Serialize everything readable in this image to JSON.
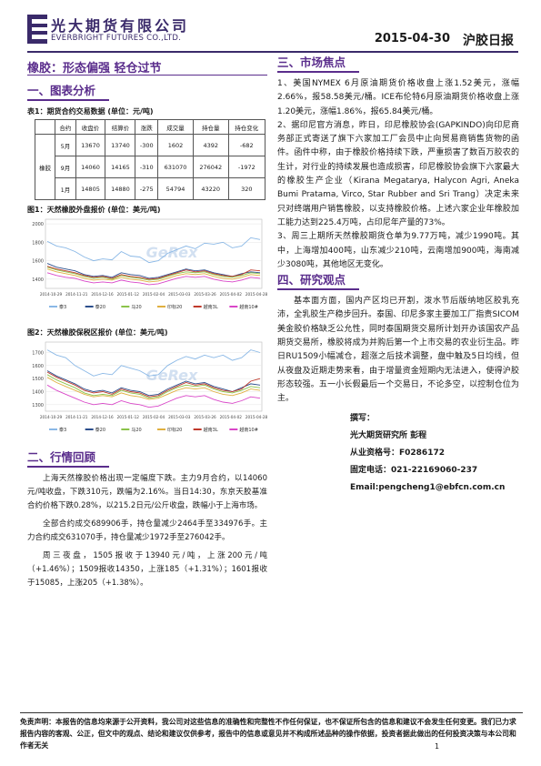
{
  "header": {
    "company_cn": "光大期货有限公司",
    "company_en": "EVERBRIGHT FUTURES CO.,LTD.",
    "date": "2015-04-30",
    "report_title": "沪胶日报"
  },
  "main_title": "橡胶：形态偏强 轻仓过节",
  "sections": {
    "charts": "一、图表分析",
    "market_review": "二、行情回顾",
    "market_focus": "三、市场焦点",
    "research_view": "四、研究观点"
  },
  "table1": {
    "caption": "表1：期货合约交易数据  (单位：元/吨)",
    "headers": [
      "合约",
      "收盘价",
      "结算价",
      "涨跌",
      "成交量",
      "持仓量",
      "持仓变化"
    ],
    "product": "橡胶",
    "rows": [
      [
        "5月",
        "13670",
        "13740",
        "-300",
        "1602",
        "4392",
        "-682"
      ],
      [
        "9月",
        "14060",
        "14165",
        "-310",
        "631070",
        "276042",
        "-1972"
      ],
      [
        "1月",
        "14805",
        "14880",
        "-275",
        "54794",
        "43220",
        "320"
      ]
    ]
  },
  "chart1": {
    "caption": "图1：天然橡胶外盘报价 (单位：美元/吨)",
    "watermark": "GeRex"
  },
  "chart2": {
    "caption": "图2：天然橡胶保税区报价 (单位：美元/吨)",
    "watermark": "GeRex"
  },
  "chart_data": [
    {
      "type": "line",
      "y_ticks": [
        "2000",
        "1800",
        "1600",
        "1400"
      ],
      "ylim": [
        1300,
        2050
      ],
      "x_ticks": [
        "2014-10-29",
        "2014-11-21",
        "2014-12-16",
        "2015-01-12",
        "2015-02-04",
        "2015-03-03",
        "2015-03-26",
        "2015-04-02",
        "2015-04-28"
      ],
      "legend_position": "bottom",
      "series": [
        {
          "name": "泰3",
          "color": "#8ab8e6",
          "values": [
            1810,
            1760,
            1740,
            1700,
            1640,
            1600,
            1620,
            1610,
            1700,
            1650,
            1640,
            1580,
            1600,
            1680,
            1720,
            1760,
            1730,
            1790,
            1780,
            1800,
            1740,
            1760,
            1850,
            1830
          ]
        },
        {
          "name": "泰20",
          "color": "#2c4f8c",
          "values": [
            1570,
            1530,
            1510,
            1490,
            1450,
            1430,
            1440,
            1420,
            1470,
            1450,
            1440,
            1410,
            1420,
            1450,
            1480,
            1510,
            1490,
            1500,
            1470,
            1450,
            1430,
            1460,
            1480,
            1470
          ]
        },
        {
          "name": "马20",
          "color": "#8bc34a",
          "values": [
            1530,
            1500,
            1480,
            1460,
            1430,
            1410,
            1420,
            1400,
            1440,
            1420,
            1410,
            1390,
            1400,
            1430,
            1460,
            1480,
            1470,
            1480,
            1450,
            1430,
            1420,
            1440,
            1470,
            1460
          ]
        },
        {
          "name": "印标20",
          "color": "#e0b040",
          "values": [
            1510,
            1480,
            1460,
            1440,
            1410,
            1390,
            1400,
            1390,
            1420,
            1400,
            1390,
            1370,
            1380,
            1410,
            1440,
            1460,
            1450,
            1460,
            1430,
            1410,
            1400,
            1420,
            1450,
            1440
          ]
        },
        {
          "name": "越南3L",
          "color": "#c0392b",
          "values": [
            1540,
            1510,
            1490,
            1470,
            1440,
            1420,
            1430,
            1410,
            1450,
            1430,
            1420,
            1400,
            1410,
            1440,
            1470,
            1500,
            1480,
            1490,
            1460,
            1440,
            1430,
            1450,
            1500,
            1490
          ]
        },
        {
          "name": "越南10#",
          "color": "#d946c8",
          "values": [
            1470,
            1440,
            1420,
            1410,
            1380,
            1360,
            1370,
            1360,
            1390,
            1370,
            1360,
            1340,
            1350,
            1380,
            1410,
            1430,
            1420,
            1430,
            1400,
            1380,
            1370,
            1390,
            1420,
            1410
          ]
        }
      ]
    },
    {
      "type": "line",
      "y_ticks": [
        "1700",
        "1600",
        "1500",
        "1400",
        "1300"
      ],
      "ylim": [
        1250,
        1780
      ],
      "x_ticks": [
        "2014-10-29",
        "2014-11-21",
        "2014-12-16",
        "2015-01-12",
        "2015-02-04",
        "2015-03-03",
        "2015-03-26",
        "2015-04-02",
        "2015-04-28"
      ],
      "legend_position": "bottom",
      "series": [
        {
          "name": "泰3",
          "color": "#8ab8e6",
          "values": [
            1720,
            1680,
            1660,
            1600,
            1560,
            1520,
            1540,
            1530,
            1600,
            1580,
            1560,
            1520,
            1530,
            1600,
            1640,
            1670,
            1650,
            1680,
            1660,
            1680,
            1640,
            1660,
            1720,
            1700
          ]
        },
        {
          "name": "泰20",
          "color": "#2c4f8c",
          "values": [
            1560,
            1520,
            1490,
            1460,
            1420,
            1400,
            1410,
            1390,
            1430,
            1410,
            1400,
            1370,
            1380,
            1420,
            1450,
            1480,
            1460,
            1470,
            1440,
            1420,
            1400,
            1430,
            1460,
            1450
          ]
        },
        {
          "name": "马20",
          "color": "#8bc34a",
          "values": [
            1530,
            1490,
            1460,
            1430,
            1390,
            1370,
            1380,
            1370,
            1410,
            1390,
            1380,
            1350,
            1360,
            1400,
            1430,
            1450,
            1440,
            1450,
            1420,
            1400,
            1390,
            1410,
            1440,
            1430
          ]
        },
        {
          "name": "印标20",
          "color": "#e0b040",
          "values": [
            1510,
            1470,
            1440,
            1410,
            1380,
            1360,
            1370,
            1360,
            1390,
            1370,
            1360,
            1340,
            1350,
            1380,
            1410,
            1430,
            1420,
            1430,
            1400,
            1380,
            1370,
            1390,
            1420,
            1410
          ]
        },
        {
          "name": "越南3L",
          "color": "#c0392b",
          "values": [
            1550,
            1510,
            1480,
            1450,
            1410,
            1390,
            1400,
            1380,
            1420,
            1400,
            1390,
            1360,
            1370,
            1410,
            1440,
            1470,
            1450,
            1460,
            1430,
            1410,
            1400,
            1420,
            1480,
            1500
          ]
        },
        {
          "name": "越南10#",
          "color": "#d946c8",
          "values": [
            1450,
            1410,
            1380,
            1350,
            1320,
            1300,
            1310,
            1300,
            1330,
            1310,
            1300,
            1280,
            1290,
            1320,
            1350,
            1370,
            1360,
            1370,
            1340,
            1320,
            1310,
            1330,
            1360,
            1350
          ]
        }
      ]
    }
  ],
  "market_review": [
    "上海天然橡胶价格出现一定幅度下跌。主力9月合约，以14060元/吨收盘，下跌310元，跌幅为2.16%。当日14:30，东京天胶基准合约价格下跌0.28%，以215.2日元/公斤收盘，跌幅小于上海市场。",
    "全部合约成交689906手，持仓量减少2464手至334976手。主力合约成交631070手，持仓量减少1972手至276042手。",
    "周三夜盘，1505报收于13940元/吨，上涨200元/吨（+1.46%）；1509报收14350，上涨185（+1.31%）；1601报收于15085，上涨205（+1.38%）。"
  ],
  "market_focus": [
    "1、美国NYMEX 6月原油期货价格收盘上涨1.52美元，涨幅2.66%，报58.58美元/桶。ICE布伦特6月原油期货价格收盘上涨1.20美元，涨幅1.86%，报65.84美元/桶。",
    "2、据印尼官方消息，昨日，印尼橡胶协会(GAPKINDO)向印尼商务部正式寄送了旗下六家加工厂会员中止向贸易商销售货物的函件。函件中称，由于橡胶价格持续下跌，严重损害了数百万胶农的生计，对行业的持续发展也造成损害，印尼橡胶协会旗下六家最大的橡胶生产企业（Kirana Megatarya, Halycon Agri, Aneka Bumi Pratama, Virco, Star Rubber and Sri Trang）决定未来只对终端用户销售橡胶，以支持橡胶价格。上述六家企业年橡胶加工能力达到225.4万吨，占印尼年产量的73%。",
    "3、周三上期所天然橡胶期货仓单为9.77万吨，减少1990吨。其中，上海增加400吨，山东减少210吨，云南增加900吨，海南减少3080吨，其他地区无变化。"
  ],
  "research_view": "基本面方面，国内产区均已开割，泼水节后版纳地区胶乳充沛，全乳胶生产稳步回升。泰国、印尼多家主要加工厂指责SICOM美金胶价格缺乏公允性，同时泰国期货交易所计划开办该国农产品期货交易所，橡胶将成为并购后第一个上市交易的农业衍生品。昨日RU1509小幅减仓，超涨之后技术调整，盘中触及5日均线，但从夜盘及近期走势来看，由于增量资金短期内无法进入，使得沪胶形态较强。五一小长假最后一个交易日，不论多空，以控制仓位为主。",
  "author": {
    "label": "撰写：",
    "name": "光大期货研究所 彭程",
    "license": "从业资格号：F0286172",
    "phone": "固定电话：021-22169060-237",
    "email": "Email:pengcheng1@ebfcn.com.cn"
  },
  "disclaimer": "免责声明：本报告的信息均来源于公开资料，我公司对这些信息的准确性和完整性不作任何保证，也不保证所包含的信息和建议不会发生任何变更。我们已力求报告内容的客观、公正，但文中的观点、结论和建议仅供参考，报告中的信息或意见并不构成所述品种的操作依据，投资者据此做出的任何投资决策与本公司和作者无关",
  "page_number": "1"
}
